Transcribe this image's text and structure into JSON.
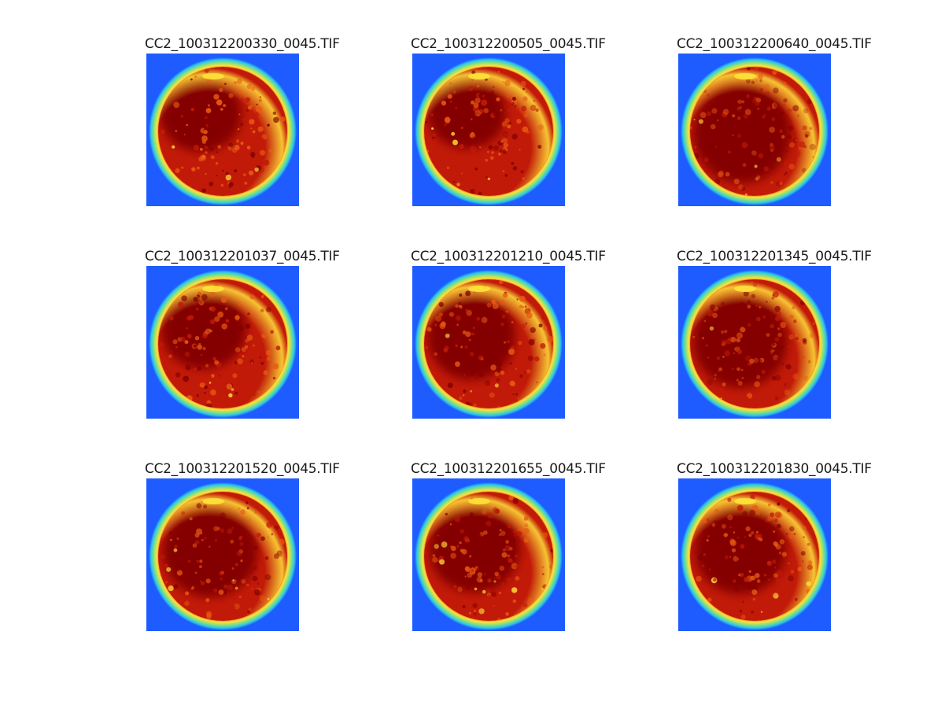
{
  "figure": {
    "panels": [
      {
        "title": "CC2_100312200330_0045.TIF"
      },
      {
        "title": "CC2_100312200505_0045.TIF"
      },
      {
        "title": "CC2_100312200640_0045.TIF"
      },
      {
        "title": "CC2_100312201037_0045.TIF"
      },
      {
        "title": "CC2_100312201210_0045.TIF"
      },
      {
        "title": "CC2_100312201345_0045.TIF"
      },
      {
        "title": "CC2_100312201520_0045.TIF"
      },
      {
        "title": "CC2_100312201655_0045.TIF"
      },
      {
        "title": "CC2_100312201830_0045.TIF"
      }
    ]
  },
  "colors": {
    "background_field": "#1f5cff",
    "ring_cyan": "#29c8e6",
    "ring_green": "#8fe07a",
    "ring_yellow": "#ffe23a",
    "disk_orange": "#e85a12",
    "disk_red": "#c21a08",
    "disk_darkred": "#840000"
  },
  "colormap": "jet"
}
